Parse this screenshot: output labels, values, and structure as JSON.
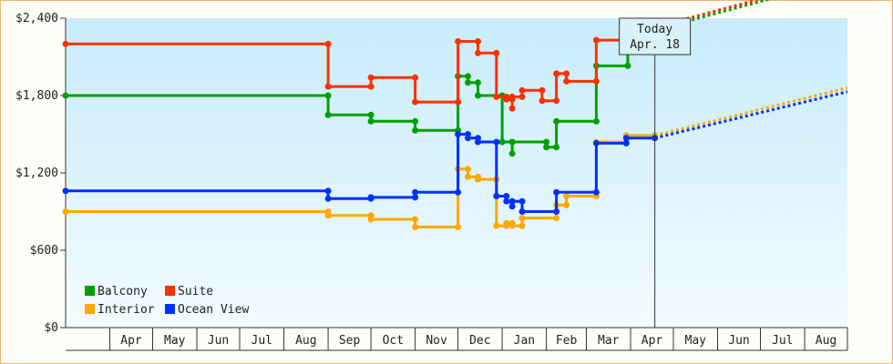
{
  "chart_data": {
    "type": "line",
    "title": "",
    "xlabel": "",
    "ylabel": "",
    "x_range": [
      "2024-03-01",
      "2025-08-31"
    ],
    "ylim": [
      0,
      2400
    ],
    "yticks": [
      0,
      600,
      1200,
      1800,
      2400
    ],
    "ytick_labels": [
      "$0",
      "$600",
      "$1,200",
      "$1,800",
      "$2,400"
    ],
    "month_labels": [
      {
        "label": "Apr",
        "start": "2024-04-01",
        "end": "2024-05-01"
      },
      {
        "label": "May",
        "start": "2024-05-01",
        "end": "2024-06-01"
      },
      {
        "label": "Jun",
        "start": "2024-06-01",
        "end": "2024-07-01"
      },
      {
        "label": "Jul",
        "start": "2024-07-01",
        "end": "2024-08-01"
      },
      {
        "label": "Aug",
        "start": "2024-08-01",
        "end": "2024-09-01"
      },
      {
        "label": "Sep",
        "start": "2024-09-01",
        "end": "2024-10-01"
      },
      {
        "label": "Oct",
        "start": "2024-10-01",
        "end": "2024-11-01"
      },
      {
        "label": "Nov",
        "start": "2024-11-01",
        "end": "2024-12-01"
      },
      {
        "label": "Dec",
        "start": "2024-12-01",
        "end": "2025-01-01"
      },
      {
        "label": "Jan",
        "start": "2025-01-01",
        "end": "2025-02-01"
      },
      {
        "label": "Feb",
        "start": "2025-02-01",
        "end": "2025-03-01"
      },
      {
        "label": "Mar",
        "start": "2025-03-01",
        "end": "2025-04-01"
      },
      {
        "label": "Apr",
        "start": "2025-04-01",
        "end": "2025-05-01"
      },
      {
        "label": "May",
        "start": "2025-05-01",
        "end": "2025-06-01"
      },
      {
        "label": "Jun",
        "start": "2025-06-01",
        "end": "2025-07-01"
      },
      {
        "label": "Jul",
        "start": "2025-07-01",
        "end": "2025-08-01"
      },
      {
        "label": "Aug",
        "start": "2025-08-01",
        "end": "2025-08-31"
      }
    ],
    "today": {
      "date": "2025-04-18",
      "label_line1": "Today",
      "label_line2": "Apr. 18"
    },
    "legend_placement": "bottom-left",
    "grid": false,
    "series": [
      {
        "name": "Balcony",
        "color": "#00a000",
        "points": [
          [
            "2024-03-01",
            1800
          ],
          [
            "2024-09-01",
            1800
          ],
          [
            "2024-09-01",
            1650
          ],
          [
            "2024-10-01",
            1650
          ],
          [
            "2024-10-01",
            1600
          ],
          [
            "2024-11-01",
            1600
          ],
          [
            "2024-11-01",
            1530
          ],
          [
            "2024-12-01",
            1530
          ],
          [
            "2024-12-01",
            1950
          ],
          [
            "2024-12-08",
            1950
          ],
          [
            "2024-12-08",
            1900
          ],
          [
            "2024-12-15",
            1900
          ],
          [
            "2024-12-15",
            1800
          ],
          [
            "2025-01-01",
            1800
          ],
          [
            "2025-01-01",
            1440
          ],
          [
            "2025-01-08",
            1440
          ],
          [
            "2025-01-08",
            1350
          ],
          [
            "2025-01-08",
            1440
          ],
          [
            "2025-02-01",
            1440
          ],
          [
            "2025-02-01",
            1400
          ],
          [
            "2025-02-08",
            1400
          ],
          [
            "2025-02-08",
            1600
          ],
          [
            "2025-03-08",
            1600
          ],
          [
            "2025-03-08",
            2030
          ],
          [
            "2025-03-30",
            2030
          ],
          [
            "2025-03-30",
            2200
          ],
          [
            "2025-04-03",
            2200
          ],
          [
            "2025-04-03",
            2310
          ],
          [
            "2025-04-18",
            2310
          ]
        ],
        "forecast": [
          [
            "2025-04-18",
            2310
          ],
          [
            "2025-08-31",
            2710
          ]
        ]
      },
      {
        "name": "Suite",
        "color": "#ff3000",
        "points": [
          [
            "2024-03-01",
            2200
          ],
          [
            "2024-09-01",
            2200
          ],
          [
            "2024-09-01",
            1870
          ],
          [
            "2024-10-01",
            1870
          ],
          [
            "2024-10-01",
            1940
          ],
          [
            "2024-11-01",
            1940
          ],
          [
            "2024-11-01",
            1750
          ],
          [
            "2024-12-01",
            1750
          ],
          [
            "2024-12-01",
            2220
          ],
          [
            "2024-12-15",
            2220
          ],
          [
            "2024-12-15",
            2130
          ],
          [
            "2024-12-28",
            2130
          ],
          [
            "2024-12-28",
            1790
          ],
          [
            "2025-01-04",
            1790
          ],
          [
            "2025-01-04",
            1770
          ],
          [
            "2025-01-08",
            1770
          ],
          [
            "2025-01-08",
            1700
          ],
          [
            "2025-01-08",
            1790
          ],
          [
            "2025-01-15",
            1790
          ],
          [
            "2025-01-15",
            1840
          ],
          [
            "2025-01-29",
            1840
          ],
          [
            "2025-01-29",
            1760
          ],
          [
            "2025-02-08",
            1760
          ],
          [
            "2025-02-08",
            1970
          ],
          [
            "2025-02-15",
            1970
          ],
          [
            "2025-02-15",
            1910
          ],
          [
            "2025-03-08",
            1910
          ],
          [
            "2025-03-08",
            2230
          ],
          [
            "2025-03-29",
            2230
          ],
          [
            "2025-03-29",
            2330
          ],
          [
            "2025-04-18",
            2330
          ]
        ],
        "forecast": [
          [
            "2025-04-18",
            2330
          ],
          [
            "2025-08-31",
            2730
          ]
        ]
      },
      {
        "name": "Interior",
        "color": "#ffa800",
        "points": [
          [
            "2024-03-01",
            900
          ],
          [
            "2024-09-01",
            900
          ],
          [
            "2024-09-01",
            870
          ],
          [
            "2024-10-01",
            870
          ],
          [
            "2024-10-01",
            840
          ],
          [
            "2024-11-01",
            840
          ],
          [
            "2024-11-01",
            780
          ],
          [
            "2024-12-01",
            780
          ],
          [
            "2024-12-01",
            1230
          ],
          [
            "2024-12-08",
            1230
          ],
          [
            "2024-12-08",
            1170
          ],
          [
            "2024-12-15",
            1170
          ],
          [
            "2024-12-15",
            1150
          ],
          [
            "2024-12-28",
            1150
          ],
          [
            "2024-12-28",
            790
          ],
          [
            "2025-01-04",
            790
          ],
          [
            "2025-01-04",
            810
          ],
          [
            "2025-01-08",
            810
          ],
          [
            "2025-01-08",
            790
          ],
          [
            "2025-01-15",
            790
          ],
          [
            "2025-01-15",
            850
          ],
          [
            "2025-02-08",
            850
          ],
          [
            "2025-02-08",
            950
          ],
          [
            "2025-02-15",
            950
          ],
          [
            "2025-02-15",
            1020
          ],
          [
            "2025-03-08",
            1020
          ],
          [
            "2025-03-08",
            1440
          ],
          [
            "2025-03-29",
            1440
          ],
          [
            "2025-03-29",
            1490
          ],
          [
            "2025-04-18",
            1490
          ]
        ],
        "forecast": [
          [
            "2025-04-18",
            1490
          ],
          [
            "2025-08-31",
            1860
          ]
        ]
      },
      {
        "name": "Ocean View",
        "color": "#0030ff",
        "points": [
          [
            "2024-03-01",
            1060
          ],
          [
            "2024-09-01",
            1060
          ],
          [
            "2024-09-01",
            1000
          ],
          [
            "2024-10-01",
            1000
          ],
          [
            "2024-10-01",
            1010
          ],
          [
            "2024-11-01",
            1010
          ],
          [
            "2024-11-01",
            1050
          ],
          [
            "2024-12-01",
            1050
          ],
          [
            "2024-12-01",
            1500
          ],
          [
            "2024-12-08",
            1500
          ],
          [
            "2024-12-08",
            1470
          ],
          [
            "2024-12-15",
            1470
          ],
          [
            "2024-12-15",
            1440
          ],
          [
            "2024-12-28",
            1440
          ],
          [
            "2024-12-28",
            1020
          ],
          [
            "2025-01-04",
            1020
          ],
          [
            "2025-01-04",
            980
          ],
          [
            "2025-01-08",
            980
          ],
          [
            "2025-01-08",
            940
          ],
          [
            "2025-01-08",
            980
          ],
          [
            "2025-01-15",
            980
          ],
          [
            "2025-01-15",
            900
          ],
          [
            "2025-02-08",
            900
          ],
          [
            "2025-02-08",
            1050
          ],
          [
            "2025-03-08",
            1050
          ],
          [
            "2025-03-08",
            1430
          ],
          [
            "2025-03-29",
            1430
          ],
          [
            "2025-03-29",
            1470
          ],
          [
            "2025-04-18",
            1470
          ]
        ],
        "forecast": [
          [
            "2025-04-18",
            1470
          ],
          [
            "2025-08-31",
            1830
          ]
        ]
      }
    ]
  }
}
